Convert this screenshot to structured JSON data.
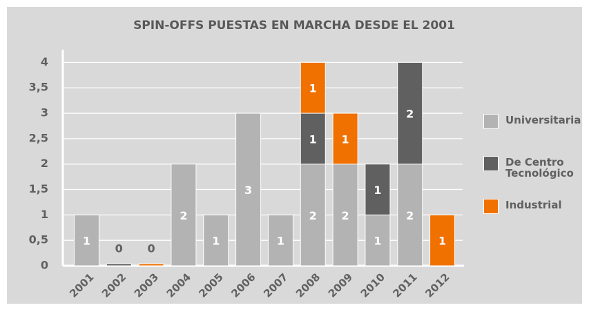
{
  "chart_data": {
    "type": "stacked_bar",
    "title": "SPIN-OFFS PUESTAS EN MARCHA DESDE EL 2001",
    "categories": [
      "2001",
      "2002",
      "2003",
      "2004",
      "2005",
      "2006",
      "2007",
      "2008",
      "2009",
      "2010",
      "2011",
      "2012"
    ],
    "series": [
      {
        "name": "Universitaria",
        "color": "#b3b3b3",
        "values": [
          1,
          null,
          null,
          2,
          1,
          3,
          1,
          2,
          2,
          1,
          2,
          null
        ]
      },
      {
        "name": "De Centro Tecnológico",
        "color": "#606060",
        "values": [
          null,
          0,
          null,
          null,
          null,
          null,
          null,
          1,
          null,
          1,
          2,
          null
        ]
      },
      {
        "name": "Industrial",
        "color": "#f07000",
        "values": [
          null,
          null,
          0,
          null,
          null,
          null,
          null,
          1,
          1,
          null,
          null,
          1
        ]
      }
    ],
    "ylim": [
      0,
      4.25
    ],
    "yticks": [
      0,
      {
        "value": 0.5,
        "label": "0,5"
      },
      1,
      {
        "value": 1.5,
        "label": "1,5"
      },
      2,
      {
        "value": 2.5,
        "label": "2,5"
      },
      3,
      {
        "value": 3.5,
        "label": "3,5"
      },
      4
    ],
    "grid": true,
    "legend": "right"
  }
}
